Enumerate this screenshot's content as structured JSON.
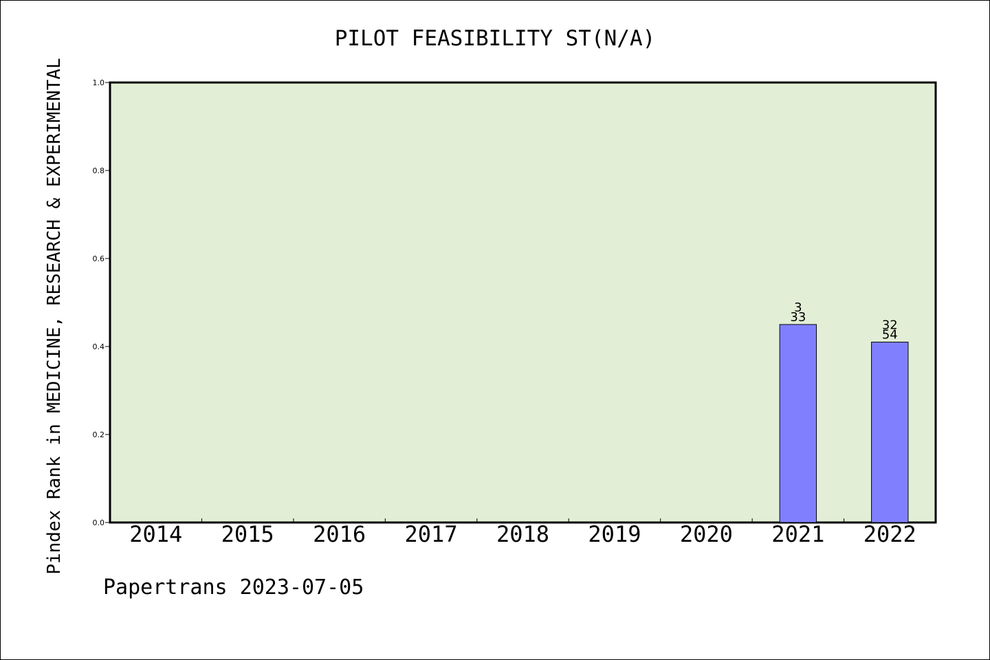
{
  "chart_data": {
    "type": "bar",
    "title": "PILOT FEASIBILITY ST(N/A)",
    "ylabel": "Pindex Rank in MEDICINE, RESEARCH & EXPERIMENTAL",
    "xlabel": "",
    "categories": [
      "2014",
      "2015",
      "2016",
      "2017",
      "2018",
      "2019",
      "2020",
      "2021",
      "2022"
    ],
    "values": [
      null,
      null,
      null,
      null,
      null,
      null,
      null,
      0.45,
      0.41
    ],
    "bar_labels": [
      [],
      [],
      [],
      [],
      [],
      [],
      [],
      [
        "3",
        "33"
      ],
      [
        "32",
        "54"
      ]
    ],
    "ylim": [
      0,
      1.0
    ],
    "yticks": [
      "0.0",
      "0.2",
      "0.4",
      "0.6",
      "0.8",
      "1.0"
    ],
    "grid": false,
    "legend": "none",
    "colors": {
      "plot_background": "#e2efd6",
      "bar_fill": "#8080ff",
      "bar_stroke": "#000000"
    }
  },
  "footer": "Papertrans 2023-07-05"
}
